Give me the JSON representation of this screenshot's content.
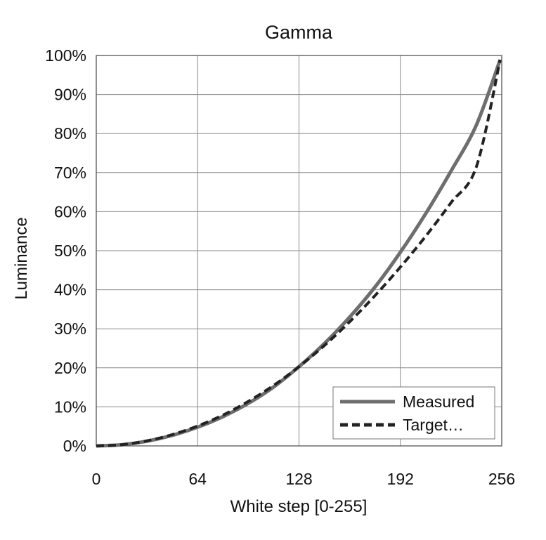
{
  "chart_data": {
    "type": "line",
    "title": "Gamma",
    "xlabel": "White step [0-255]",
    "ylabel": "Luminance",
    "xlim": [
      0,
      256
    ],
    "ylim": [
      0,
      100
    ],
    "x_ticks": [
      0,
      64,
      128,
      192,
      256
    ],
    "x_tick_labels": [
      "0",
      "64",
      "128",
      "192",
      "256"
    ],
    "y_ticks": [
      0,
      10,
      20,
      30,
      40,
      50,
      60,
      70,
      80,
      90,
      100
    ],
    "y_tick_labels": [
      "0%",
      "10%",
      "20%",
      "30%",
      "40%",
      "50%",
      "60%",
      "70%",
      "80%",
      "90%",
      "100%"
    ],
    "grid": true,
    "legend_position": "bottom-right",
    "x": [
      0,
      16,
      32,
      48,
      64,
      80,
      96,
      112,
      128,
      144,
      160,
      176,
      192,
      208,
      224,
      240,
      255
    ],
    "series": [
      {
        "name": "Measured",
        "color": "#6e6e6e",
        "style": "solid",
        "values": [
          0,
          0.3,
          1.2,
          2.7,
          4.8,
          7.5,
          10.9,
          15.1,
          20.3,
          26.2,
          33.0,
          40.7,
          49.6,
          59.5,
          70.4,
          82.2,
          98.9
        ]
      },
      {
        "name": "Target…",
        "color": "#222222",
        "style": "dashed",
        "values": [
          0,
          0.3,
          1.3,
          2.9,
          5.1,
          7.9,
          11.4,
          15.5,
          20.3,
          25.7,
          31.8,
          38.5,
          45.8,
          53.7,
          62.3,
          71.5,
          98.9
        ]
      }
    ]
  }
}
